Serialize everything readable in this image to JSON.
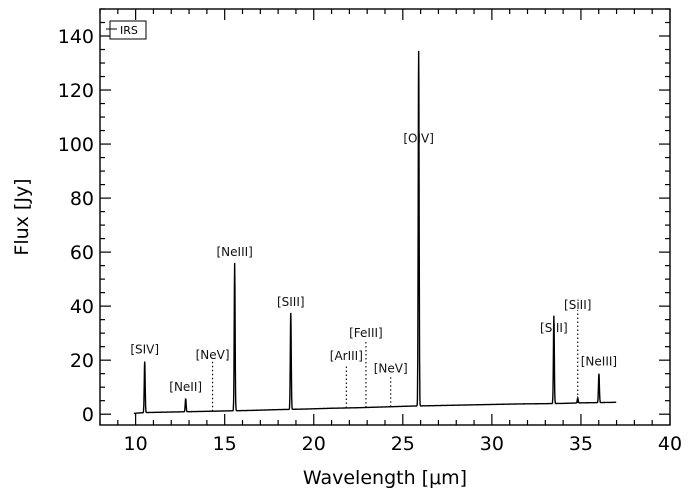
{
  "chart_data": {
    "type": "line",
    "xlabel": "Wavelength [μm]",
    "ylabel": "Flux [Jy]",
    "xlim": [
      8,
      40
    ],
    "ylim": [
      -4,
      150
    ],
    "xticks": [
      10,
      15,
      20,
      25,
      30,
      35,
      40
    ],
    "yticks": [
      0,
      20,
      40,
      60,
      80,
      100,
      120,
      140
    ],
    "legend": {
      "label": "IRS",
      "position": "top-left"
    },
    "grid": false,
    "series": [
      {
        "continuum": [
          [
            9.9,
            0.3
          ],
          [
            10.5,
            0.6
          ],
          [
            12.0,
            0.8
          ],
          [
            13.5,
            1.0
          ],
          [
            15.0,
            1.2
          ],
          [
            16.5,
            1.4
          ],
          [
            18.0,
            1.7
          ],
          [
            19.5,
            1.9
          ],
          [
            21.0,
            2.2
          ],
          [
            22.5,
            2.4
          ],
          [
            24.0,
            2.7
          ],
          [
            25.5,
            3.0
          ],
          [
            27.0,
            3.2
          ],
          [
            28.5,
            3.4
          ],
          [
            30.0,
            3.6
          ],
          [
            31.5,
            3.8
          ],
          [
            33.0,
            3.9
          ],
          [
            34.0,
            4.0
          ],
          [
            35.0,
            4.2
          ],
          [
            36.0,
            4.3
          ],
          [
            37.0,
            4.4
          ]
        ],
        "peaks": [
          {
            "x": 10.51,
            "y": 19.5
          },
          {
            "x": 12.81,
            "y": 5.8
          },
          {
            "x": 15.56,
            "y": 56.0
          },
          {
            "x": 18.71,
            "y": 37.5
          },
          {
            "x": 25.89,
            "y": 134.5
          },
          {
            "x": 33.48,
            "y": 36.5
          },
          {
            "x": 34.82,
            "y": 6.0
          },
          {
            "x": 36.01,
            "y": 15.0
          }
        ]
      }
    ],
    "annotations": [
      {
        "label": "[SIV]",
        "x": 10.51,
        "y": 22.5
      },
      {
        "label": "[NeII]",
        "x": 12.81,
        "y": 8.5
      },
      {
        "label": "[NeV]",
        "x": 14.32,
        "y": 20.5,
        "marker_top": 19.5,
        "dotted": true
      },
      {
        "label": "[NeIII]",
        "x": 15.56,
        "y": 58.5
      },
      {
        "label": "[SIII]",
        "x": 18.71,
        "y": 40.0
      },
      {
        "label": "[ArIII]",
        "x": 21.83,
        "y": 20.0,
        "marker_top": 18.5,
        "dotted": true
      },
      {
        "label": "[FeIII]",
        "x": 22.93,
        "y": 28.5,
        "marker_top": 27.5,
        "dotted": true
      },
      {
        "label": "[NeV]",
        "x": 24.32,
        "y": 15.5,
        "marker_top": 14.5,
        "dotted": true
      },
      {
        "label": "[OIV]",
        "x": 25.89,
        "y": 100.5
      },
      {
        "label": "[SIII]",
        "x": 33.48,
        "y": 30.5
      },
      {
        "label": "[SiII]",
        "x": 34.82,
        "y": 39.0,
        "marker_top": 38.5,
        "dotted": true
      },
      {
        "label": "[NeIII]",
        "x": 36.01,
        "y": 18.0
      }
    ]
  }
}
